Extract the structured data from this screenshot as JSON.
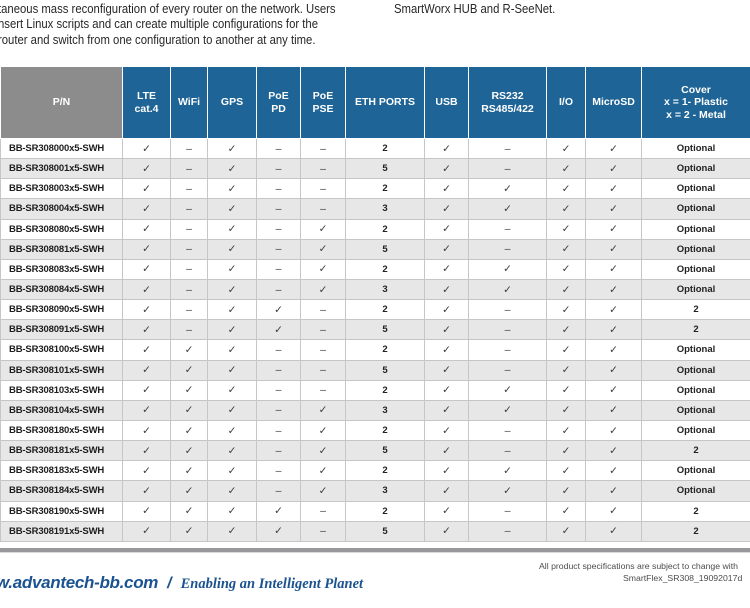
{
  "intro": {
    "left_lines": [
      "taneous mass reconfiguration of every router on the network. Users",
      "nsert Linux scripts and can create multiple configurations for the",
      "router and switch from one configuration to another at any time."
    ],
    "right_text": "SmartWorx HUB and R-SeeNet."
  },
  "symbols": {
    "check": "✓",
    "dash": "–"
  },
  "colors": {
    "header_blue": "#1E6496",
    "header_gray": "#8C8C8C",
    "footer_blue": "#1B5391"
  },
  "table": {
    "columns": [
      {
        "key": "pn",
        "lines": [
          "P/N"
        ]
      },
      {
        "key": "lte-cat4",
        "lines": [
          "LTE",
          "cat.4"
        ]
      },
      {
        "key": "wifi",
        "lines": [
          "WiFi"
        ]
      },
      {
        "key": "gps",
        "lines": [
          "GPS"
        ]
      },
      {
        "key": "poe-pd",
        "lines": [
          "PoE",
          "PD"
        ]
      },
      {
        "key": "poe-pse",
        "lines": [
          "PoE",
          "PSE"
        ]
      },
      {
        "key": "eth-ports",
        "lines": [
          "ETH PORTS"
        ]
      },
      {
        "key": "usb",
        "lines": [
          "USB"
        ]
      },
      {
        "key": "rs232-rs485-422",
        "lines": [
          "RS232",
          "RS485/422"
        ]
      },
      {
        "key": "io",
        "lines": [
          "I/O"
        ]
      },
      {
        "key": "microsd",
        "lines": [
          "MicroSD"
        ]
      },
      {
        "key": "cover",
        "lines": [
          "Cover",
          "x = 1- Plastic",
          "x = 2 - Metal"
        ]
      }
    ],
    "rows": [
      {
        "pn": "BB-SR308000x5-SWH",
        "cells": [
          "check",
          "dash",
          "check",
          "dash",
          "dash",
          "2",
          "check",
          "dash",
          "check",
          "check",
          "Optional"
        ]
      },
      {
        "pn": "BB-SR308001x5-SWH",
        "cells": [
          "check",
          "dash",
          "check",
          "dash",
          "dash",
          "5",
          "check",
          "dash",
          "check",
          "check",
          "Optional"
        ]
      },
      {
        "pn": "BB-SR308003x5-SWH",
        "cells": [
          "check",
          "dash",
          "check",
          "dash",
          "dash",
          "2",
          "check",
          "check",
          "check",
          "check",
          "Optional"
        ]
      },
      {
        "pn": "BB-SR308004x5-SWH",
        "cells": [
          "check",
          "dash",
          "check",
          "dash",
          "dash",
          "3",
          "check",
          "check",
          "check",
          "check",
          "Optional"
        ]
      },
      {
        "pn": "BB-SR308080x5-SWH",
        "cells": [
          "check",
          "dash",
          "check",
          "dash",
          "check",
          "2",
          "check",
          "dash",
          "check",
          "check",
          "Optional"
        ]
      },
      {
        "pn": "BB-SR308081x5-SWH",
        "cells": [
          "check",
          "dash",
          "check",
          "dash",
          "check",
          "5",
          "check",
          "dash",
          "check",
          "check",
          "Optional"
        ]
      },
      {
        "pn": "BB-SR308083x5-SWH",
        "cells": [
          "check",
          "dash",
          "check",
          "dash",
          "check",
          "2",
          "check",
          "check",
          "check",
          "check",
          "Optional"
        ]
      },
      {
        "pn": "BB-SR308084x5-SWH",
        "cells": [
          "check",
          "dash",
          "check",
          "dash",
          "check",
          "3",
          "check",
          "check",
          "check",
          "check",
          "Optional"
        ]
      },
      {
        "pn": "BB-SR308090x5-SWH",
        "cells": [
          "check",
          "dash",
          "check",
          "check",
          "dash",
          "2",
          "check",
          "dash",
          "check",
          "check",
          "2"
        ]
      },
      {
        "pn": "BB-SR308091x5-SWH",
        "cells": [
          "check",
          "dash",
          "check",
          "check",
          "dash",
          "5",
          "check",
          "dash",
          "check",
          "check",
          "2"
        ]
      },
      {
        "pn": "BB-SR308100x5-SWH",
        "cells": [
          "check",
          "check",
          "check",
          "dash",
          "dash",
          "2",
          "check",
          "dash",
          "check",
          "check",
          "Optional"
        ]
      },
      {
        "pn": "BB-SR308101x5-SWH",
        "cells": [
          "check",
          "check",
          "check",
          "dash",
          "dash",
          "5",
          "check",
          "dash",
          "check",
          "check",
          "Optional"
        ]
      },
      {
        "pn": "BB-SR308103x5-SWH",
        "cells": [
          "check",
          "check",
          "check",
          "dash",
          "dash",
          "2",
          "check",
          "check",
          "check",
          "check",
          "Optional"
        ]
      },
      {
        "pn": "BB-SR308104x5-SWH",
        "cells": [
          "check",
          "check",
          "check",
          "dash",
          "check",
          "3",
          "check",
          "check",
          "check",
          "check",
          "Optional"
        ]
      },
      {
        "pn": "BB-SR308180x5-SWH",
        "cells": [
          "check",
          "check",
          "check",
          "dash",
          "check",
          "2",
          "check",
          "dash",
          "check",
          "check",
          "Optional"
        ]
      },
      {
        "pn": "BB-SR308181x5-SWH",
        "cells": [
          "check",
          "check",
          "check",
          "dash",
          "check",
          "5",
          "check",
          "dash",
          "check",
          "check",
          "2"
        ]
      },
      {
        "pn": "BB-SR308183x5-SWH",
        "cells": [
          "check",
          "check",
          "check",
          "dash",
          "check",
          "2",
          "check",
          "check",
          "check",
          "check",
          "Optional"
        ]
      },
      {
        "pn": "BB-SR308184x5-SWH",
        "cells": [
          "check",
          "check",
          "check",
          "dash",
          "check",
          "3",
          "check",
          "check",
          "check",
          "check",
          "Optional"
        ]
      },
      {
        "pn": "BB-SR308190x5-SWH",
        "cells": [
          "check",
          "check",
          "check",
          "check",
          "dash",
          "2",
          "check",
          "dash",
          "check",
          "check",
          "2"
        ]
      },
      {
        "pn": "BB-SR308191x5-SWH",
        "cells": [
          "check",
          "check",
          "check",
          "check",
          "dash",
          "5",
          "check",
          "dash",
          "check",
          "check",
          "2"
        ]
      }
    ]
  },
  "footer": {
    "url": "w.advantech-bb.com",
    "slash": "/",
    "tagline": "Enabling an Intelligent Planet",
    "note_line1": "All product specifications are subject to change with",
    "note_line2": "SmartFlex_SR308_19092017d"
  }
}
